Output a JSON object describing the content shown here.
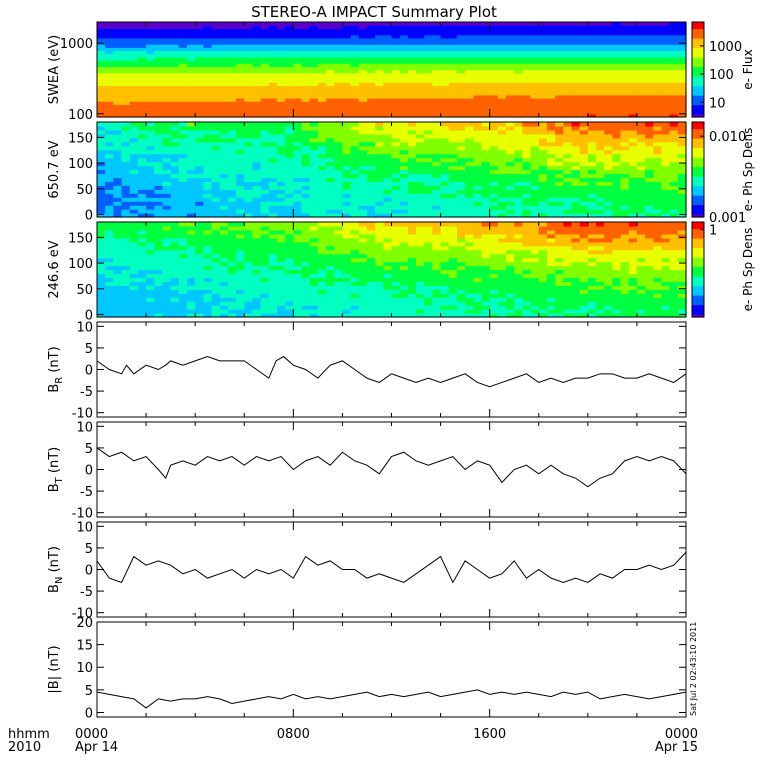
{
  "title": "STEREO-A IMPACT Summary Plot",
  "stamp": "Sat Jul  2 02:43:10 2011",
  "colors": {
    "background": "#ffffff",
    "axis": "#000000",
    "trace": "#000000"
  },
  "colormap": [
    "#5a00c8",
    "#0000ff",
    "#0060ff",
    "#00c8ff",
    "#00ffc0",
    "#00ff40",
    "#80ff00",
    "#e8ff00",
    "#ffc000",
    "#ff6000",
    "#ff0000"
  ],
  "time_axis": {
    "corner_top": "hhmm",
    "corner_bottom": "2010",
    "ticks": [
      {
        "top": "0000",
        "bottom": "Apr 14",
        "hour": 0
      },
      {
        "top": "0800",
        "bottom": "",
        "hour": 8
      },
      {
        "top": "1600",
        "bottom": "",
        "hour": 16
      },
      {
        "top": "0000",
        "bottom": "Apr 15",
        "hour": 24
      }
    ]
  },
  "chart_data": [
    {
      "type": "heatmap",
      "ylabel": "SWEA (eV)",
      "yscale": "log",
      "ylim": [
        90,
        2000
      ],
      "yticks": [
        {
          "label": "1000",
          "value": 1000
        },
        {
          "label": "100",
          "value": 100
        }
      ],
      "colorbar": {
        "label": "e- Flux",
        "scale": "log",
        "range": [
          3,
          7000
        ],
        "ticks": [
          {
            "label": "1000",
            "value": 1000
          },
          {
            "label": "100",
            "value": 100
          },
          {
            "label": "10",
            "value": 10
          }
        ]
      },
      "x_hours": [
        0,
        24
      ],
      "description_rows_eV": [
        100,
        200,
        400,
        700,
        1000,
        1500,
        2000
      ],
      "levels_by_energy": [
        3500,
        1500,
        400,
        60,
        15,
        5,
        3
      ]
    },
    {
      "type": "heatmap",
      "ylabel": "650.7 eV",
      "ylim": [
        -5,
        180
      ],
      "yticks": [
        {
          "label": "150",
          "value": 150
        },
        {
          "label": "100",
          "value": 100
        },
        {
          "label": "50",
          "value": 50
        },
        {
          "label": "0",
          "value": 0
        }
      ],
      "colorbar": {
        "label": "e- Ph Sp Dens",
        "scale": "log",
        "range": [
          0.001,
          0.015
        ],
        "ticks": [
          {
            "label": "0.010",
            "value": 0.01
          },
          {
            "label": "0.001",
            "value": 0.001
          }
        ]
      },
      "x_hours": [
        0,
        24
      ],
      "pitch_angle_profile": {
        "hours": [
          0,
          4,
          8,
          11,
          15,
          18,
          20,
          24
        ],
        "high_pitch_level": [
          0.003,
          0.004,
          0.004,
          0.007,
          0.008,
          0.01,
          0.013,
          0.012
        ],
        "low_pitch_level": [
          0.0018,
          0.0022,
          0.0025,
          0.0027,
          0.003,
          0.0032,
          0.0034,
          0.0035
        ]
      }
    },
    {
      "type": "heatmap",
      "ylabel": "246.6 eV",
      "ylim": [
        -5,
        180
      ],
      "yticks": [
        {
          "label": "150",
          "value": 150
        },
        {
          "label": "100",
          "value": 100
        },
        {
          "label": "50",
          "value": 50
        },
        {
          "label": "0",
          "value": 0
        }
      ],
      "colorbar": {
        "label": "e- Ph Sp Dens",
        "scale": "log",
        "range": [
          0.05,
          1.3
        ],
        "ticks": [
          {
            "label": "1",
            "value": 1
          }
        ]
      },
      "x_hours": [
        0,
        24
      ],
      "pitch_angle_profile": {
        "hours": [
          0,
          4,
          8,
          11,
          15,
          18,
          20,
          24
        ],
        "high_pitch_level": [
          0.25,
          0.3,
          0.35,
          0.6,
          0.7,
          0.9,
          1.2,
          1.1
        ],
        "low_pitch_level": [
          0.12,
          0.15,
          0.17,
          0.18,
          0.2,
          0.22,
          0.23,
          0.24
        ]
      }
    },
    {
      "type": "line",
      "ylabel": "B",
      "ylabel_sub": "R",
      "ylabel_unit": "(nT)",
      "ylim": [
        -11,
        11
      ],
      "yticks": [
        {
          "label": "10",
          "value": 10
        },
        {
          "label": "5",
          "value": 5
        },
        {
          "label": "0",
          "value": 0
        },
        {
          "label": "-5",
          "value": -5
        },
        {
          "label": "-10",
          "value": -10
        }
      ],
      "x": [
        0,
        0.5,
        1,
        1.2,
        1.5,
        2,
        2.5,
        2.8,
        3,
        3.5,
        4,
        4.5,
        5,
        5.5,
        6,
        6.5,
        7,
        7.3,
        7.6,
        8,
        8.5,
        9,
        9.5,
        10,
        10.5,
        11,
        11.5,
        12,
        12.5,
        13,
        13.5,
        14,
        14.5,
        15,
        15.5,
        16,
        16.5,
        17,
        17.5,
        18,
        18.5,
        19,
        19.5,
        20,
        20.5,
        21,
        21.5,
        22,
        22.5,
        23,
        23.5,
        24
      ],
      "y": [
        2,
        0,
        -1,
        1,
        -1,
        1,
        0,
        1,
        2,
        1,
        2,
        3,
        2,
        2,
        2,
        0,
        -2,
        2,
        3,
        1,
        0,
        -2,
        1,
        2,
        0,
        -2,
        -3,
        -1,
        -2,
        -3,
        -2,
        -3,
        -2,
        -1,
        -3,
        -4,
        -3,
        -2,
        -1,
        -3,
        -2,
        -3,
        -2,
        -2,
        -1,
        -1,
        -2,
        -2,
        -1,
        -2,
        -3,
        -1
      ]
    },
    {
      "type": "line",
      "ylabel": "B",
      "ylabel_sub": "T",
      "ylabel_unit": "(nT)",
      "ylim": [
        -11,
        11
      ],
      "yticks": [
        {
          "label": "10",
          "value": 10
        },
        {
          "label": "5",
          "value": 5
        },
        {
          "label": "0",
          "value": 0
        },
        {
          "label": "-5",
          "value": -5
        },
        {
          "label": "-10",
          "value": -10
        }
      ],
      "x": [
        0,
        0.5,
        1,
        1.5,
        2,
        2.5,
        2.8,
        3,
        3.5,
        4,
        4.5,
        5,
        5.5,
        6,
        6.5,
        7,
        7.5,
        8,
        8.5,
        9,
        9.5,
        10,
        10.5,
        11,
        11.5,
        12,
        12.5,
        13,
        13.5,
        14,
        14.5,
        15,
        15.5,
        16,
        16.5,
        17,
        17.5,
        18,
        18.5,
        19,
        19.5,
        20,
        20.5,
        21,
        21.5,
        22,
        22.5,
        23,
        23.5,
        24
      ],
      "y": [
        5,
        3,
        4,
        2,
        3,
        0,
        -2,
        1,
        2,
        1,
        3,
        2,
        3,
        1,
        3,
        2,
        3,
        0,
        2,
        3,
        1,
        4,
        2,
        1,
        -1,
        3,
        4,
        2,
        1,
        2,
        3,
        0,
        2,
        1,
        -3,
        0,
        1,
        -1,
        1,
        -1,
        -2,
        -4,
        -2,
        -1,
        2,
        3,
        2,
        3,
        2,
        -1
      ]
    },
    {
      "type": "line",
      "ylabel": "B",
      "ylabel_sub": "N",
      "ylabel_unit": "(nT)",
      "ylim": [
        -11,
        11
      ],
      "yticks": [
        {
          "label": "10",
          "value": 10
        },
        {
          "label": "5",
          "value": 5
        },
        {
          "label": "0",
          "value": 0
        },
        {
          "label": "-5",
          "value": -5
        },
        {
          "label": "-10",
          "value": -10
        }
      ],
      "x": [
        0,
        0.5,
        1,
        1.5,
        2,
        2.5,
        3,
        3.5,
        4,
        4.5,
        5,
        5.5,
        6,
        6.5,
        7,
        7.5,
        8,
        8.5,
        9,
        9.5,
        10,
        10.5,
        11,
        11.5,
        12,
        12.5,
        13,
        13.5,
        14,
        14.5,
        15,
        15.5,
        16,
        16.5,
        17,
        17.5,
        18,
        18.5,
        19,
        19.5,
        20,
        20.5,
        21,
        21.5,
        22,
        22.5,
        23,
        23.5,
        24
      ],
      "y": [
        2,
        -2,
        -3,
        3,
        1,
        2,
        1,
        -1,
        0,
        -2,
        -1,
        0,
        -2,
        0,
        -1,
        0,
        -2,
        3,
        1,
        2,
        0,
        0,
        -2,
        -1,
        -2,
        -3,
        -1,
        1,
        3,
        -3,
        2,
        0,
        -2,
        -1,
        2,
        -2,
        0,
        -2,
        -3,
        -2,
        -3,
        -1,
        -2,
        0,
        0,
        1,
        0,
        1,
        4
      ]
    },
    {
      "type": "line",
      "ylabel": "|B|",
      "ylabel_unit": "(nT)",
      "ylim": [
        -1,
        20
      ],
      "yticks": [
        {
          "label": "20",
          "value": 20
        },
        {
          "label": "15",
          "value": 15
        },
        {
          "label": "10",
          "value": 10
        },
        {
          "label": "5",
          "value": 5
        },
        {
          "label": "0",
          "value": 0
        }
      ],
      "x": [
        0,
        0.5,
        1,
        1.5,
        2,
        2.5,
        3,
        3.5,
        4,
        4.5,
        5,
        5.5,
        6,
        6.5,
        7,
        7.5,
        8,
        8.5,
        9,
        9.5,
        10,
        10.5,
        11,
        11.5,
        12,
        12.5,
        13,
        13.5,
        14,
        14.5,
        15,
        15.5,
        16,
        16.5,
        17,
        17.5,
        18,
        18.5,
        19,
        19.5,
        20,
        20.5,
        21,
        21.5,
        22,
        22.5,
        23,
        23.5,
        24
      ],
      "y": [
        4.5,
        4,
        3.5,
        3,
        1,
        3,
        2.5,
        3,
        3,
        3.5,
        3,
        2,
        2.5,
        3,
        3.5,
        3,
        4,
        3,
        3.5,
        3,
        3.5,
        4,
        4.5,
        3.5,
        4,
        3.5,
        4,
        4.5,
        3.5,
        4,
        4.5,
        5,
        4,
        4.5,
        4,
        4.5,
        4,
        3.5,
        4.5,
        4,
        4.5,
        3,
        3.5,
        4,
        3.5,
        3,
        3.5,
        4,
        4.5
      ]
    }
  ]
}
